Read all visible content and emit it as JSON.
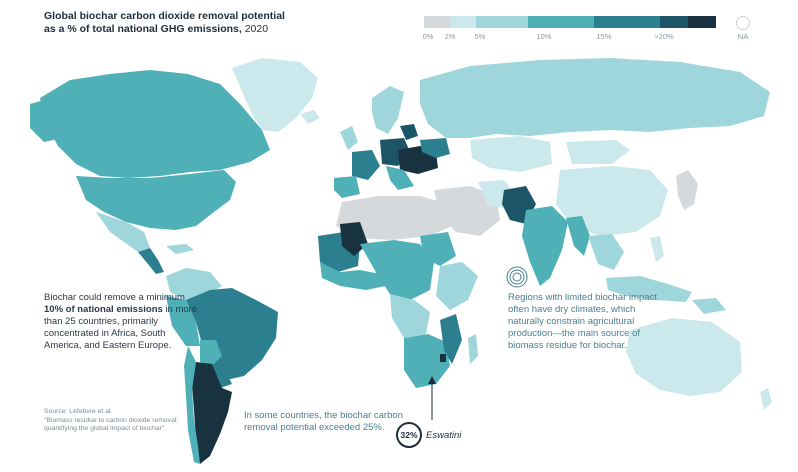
{
  "title": {
    "line1": "Global biochar carbon dioxide removal potential",
    "line2": "as a % of total national GHG emissions,",
    "year": "2020"
  },
  "legend": {
    "tick_labels": [
      "0%",
      "2%",
      "5%",
      "10%",
      "15%",
      ">20%"
    ],
    "na_label": "NA",
    "colors": {
      "none": "#d6d9dc",
      "c0_2": "#cbe9ec",
      "c2_5": "#9fd6dc",
      "c5_10": "#4fb0b8",
      "c10_15": "#2c7f8f",
      "c15_20": "#1d5568",
      "c20p": "#18323f",
      "na": "#ffffff"
    }
  },
  "callouts": {
    "left_pre": "Biochar could remove a minimum",
    "left_bold": "10% of national emissions",
    "left_post": "in more than 25 countries, primarily concentrated in Africa, South America, and Eastern Europe.",
    "right": "Regions with limited biochar impact often have dry climates, which naturally constrain agricultural production—the main source of biomass residue for biochar.",
    "bottom": "In some countries, the biochar carbon removal potential exceeded 25%."
  },
  "source": {
    "line1": "Source: Lefebvre et al.",
    "line2": "\"Biomass residue to carbon dioxide removal: quantifying the global impact of biochar\""
  },
  "eswatini": {
    "value": "32%",
    "label": "Eswatini"
  }
}
